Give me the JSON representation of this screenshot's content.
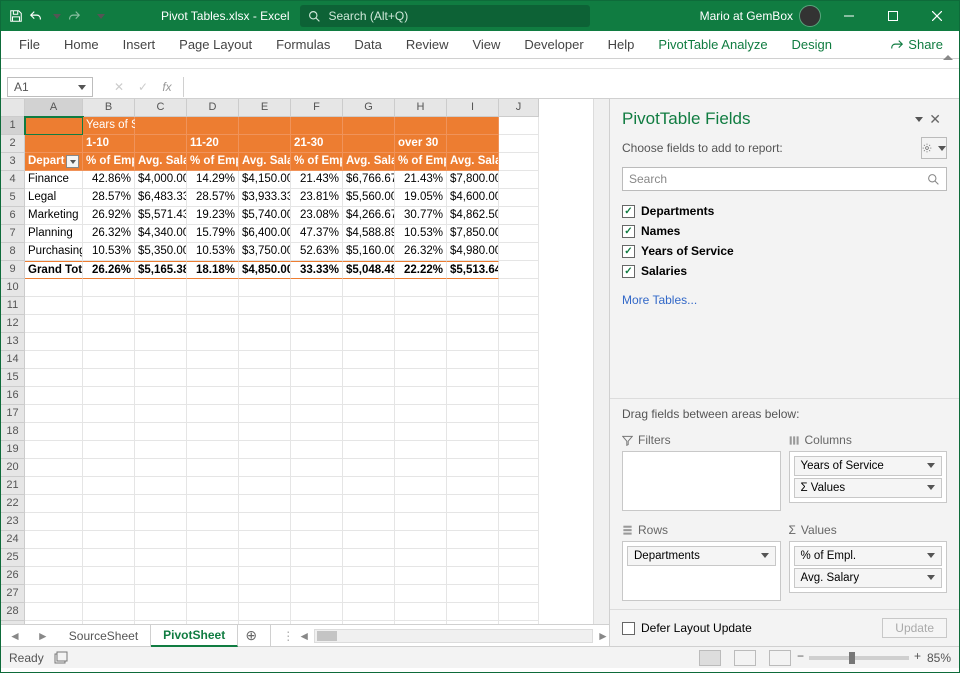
{
  "title": "Pivot Tables.xlsx  -  Excel",
  "search_placeholder": "Search (Alt+Q)",
  "user": "Mario at GemBox",
  "ribbon_tabs": [
    "File",
    "Home",
    "Insert",
    "Page Layout",
    "Formulas",
    "Data",
    "Review",
    "View",
    "Developer",
    "Help"
  ],
  "context_tabs": [
    "PivotTable Analyze",
    "Design"
  ],
  "share_label": "Share",
  "namebox": "A1",
  "columns": {
    "letters": [
      "A",
      "B",
      "C",
      "D",
      "E",
      "F",
      "G",
      "H",
      "I",
      "J"
    ],
    "widths": [
      58,
      52,
      52,
      52,
      52,
      52,
      52,
      52,
      52,
      40
    ]
  },
  "row_count": 29,
  "pivot": {
    "row1": {
      "B": "Years of Service"
    },
    "row2": {
      "B": "1-10",
      "D": "11-20",
      "F": "21-30",
      "H": "over 30"
    },
    "row3": {
      "A": "Departments",
      "pair": [
        "% of Empl.",
        "Avg. Salary"
      ]
    },
    "data_rows": [
      {
        "dept": "Finance",
        "v": [
          "42.86%",
          "$4,000.00",
          "14.29%",
          "$4,150.00",
          "21.43%",
          "$6,766.67",
          "21.43%",
          "$7,800.00"
        ]
      },
      {
        "dept": "Legal",
        "v": [
          "28.57%",
          "$6,483.33",
          "28.57%",
          "$3,933.33",
          "23.81%",
          "$5,560.00",
          "19.05%",
          "$4,600.00"
        ]
      },
      {
        "dept": "Marketing",
        "v": [
          "26.92%",
          "$5,571.43",
          "19.23%",
          "$5,740.00",
          "23.08%",
          "$4,266.67",
          "30.77%",
          "$4,862.50"
        ]
      },
      {
        "dept": "Planning",
        "v": [
          "26.32%",
          "$4,340.00",
          "15.79%",
          "$6,400.00",
          "47.37%",
          "$4,588.89",
          "10.53%",
          "$7,850.00"
        ]
      },
      {
        "dept": "Purchasing",
        "v": [
          "10.53%",
          "$5,350.00",
          "10.53%",
          "$3,750.00",
          "52.63%",
          "$5,160.00",
          "26.32%",
          "$4,980.00"
        ]
      }
    ],
    "grand": {
      "label": "Grand Total",
      "v": [
        "26.26%",
        "$5,165.38",
        "18.18%",
        "$4,850.00",
        "33.33%",
        "$5,048.48",
        "22.22%",
        "$5,513.64"
      ]
    }
  },
  "sheets": {
    "tabs": [
      "SourceSheet",
      "PivotSheet"
    ],
    "active": 1
  },
  "status": {
    "ready": "Ready",
    "zoom": "85%"
  },
  "pane": {
    "title": "PivotTable Fields",
    "choose": "Choose fields to add to report:",
    "search": "Search",
    "fields": [
      "Departments",
      "Names",
      "Years of Service",
      "Salaries"
    ],
    "more": "More Tables...",
    "drag": "Drag fields between areas below:",
    "areas": {
      "filters": "Filters",
      "columns": "Columns",
      "rows": "Rows",
      "values": "Values"
    },
    "col_chips": [
      "Years of Service",
      "Σ  Values"
    ],
    "row_chips": [
      "Departments"
    ],
    "val_chips": [
      "% of Empl.",
      "Avg. Salary"
    ],
    "defer": "Defer Layout Update",
    "update": "Update"
  },
  "colors": {
    "brand": "#107c41",
    "orange": "#ed7d31"
  }
}
